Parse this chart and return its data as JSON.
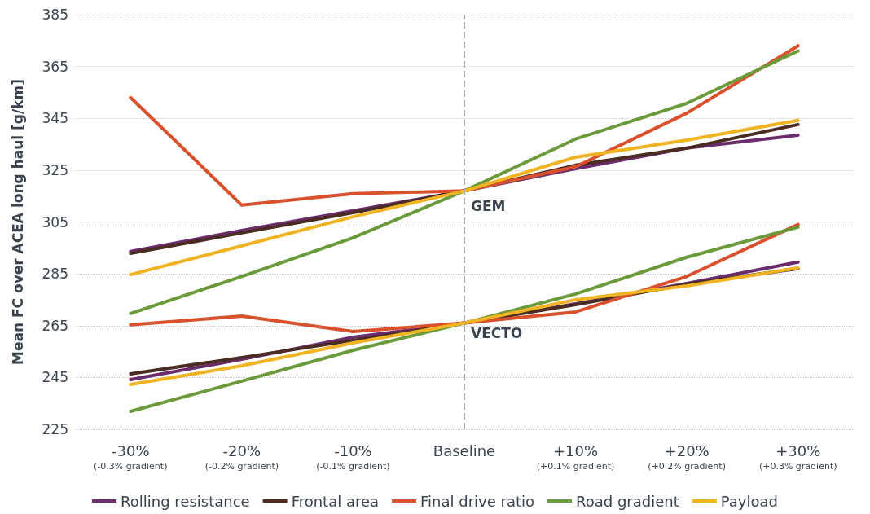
{
  "chart_data": {
    "type": "line",
    "ylabel": "Mean FC over ACEA long haul [g/km]",
    "categories": [
      "-30%\n(-0.3% gradient)",
      "-20%\n(-0.2% gradient)",
      "-10%\n(-0.1% gradient)",
      "Baseline",
      "+10%\n(+0.1% gradient)",
      "+20%\n(+0.2% gradient)",
      "+30%\n(+0.3% gradient)"
    ],
    "series": [
      {
        "name": "Rolling resistance",
        "color": "#6b2c6e",
        "values": [
          293.6,
          301.7,
          309.3,
          317,
          325.6,
          333.5,
          338.5
        ]
      },
      {
        "name": "Frontal area",
        "color": "#4a2c22",
        "values": [
          292.9,
          300.8,
          308.6,
          317,
          326.9,
          333.5,
          342.6
        ]
      },
      {
        "name": "Final drive ratio",
        "color": "#d9512c",
        "values": [
          353,
          311.5,
          315.9,
          317,
          326.3,
          347,
          373
        ]
      },
      {
        "name": "Road gradient",
        "color": "#6a9a3a",
        "values": [
          269.7,
          284,
          298.9,
          317,
          337,
          350.8,
          371
        ]
      },
      {
        "name": "Payload",
        "color": "#f0b323",
        "values": [
          284.7,
          295.8,
          307,
          317,
          330,
          336.6,
          344.2
        ]
      },
      {
        "color": "#6b2c6e",
        "values": [
          244.2,
          252,
          260.5,
          266,
          273.4,
          281.3,
          289.5
        ]
      },
      {
        "color": "#4a2c22",
        "values": [
          246.4,
          252.7,
          259.3,
          266,
          273.1,
          281,
          287
        ]
      },
      {
        "color": "#d9512c",
        "values": [
          265.3,
          268.7,
          262.7,
          266,
          270.3,
          284,
          304
        ]
      },
      {
        "color": "#6a9a3a",
        "values": [
          231.9,
          243.6,
          255.5,
          266,
          277.2,
          291.4,
          303
        ]
      },
      {
        "color": "#f0b323",
        "values": [
          242.3,
          249.5,
          258.3,
          266,
          275,
          280.3,
          287.3
        ]
      }
    ],
    "ylim": [
      225,
      385
    ],
    "yticks": [
      225,
      245,
      265,
      285,
      305,
      325,
      345,
      365,
      385
    ],
    "grid": "y",
    "legend": "bottom",
    "marker": "none",
    "line_style": "solid",
    "ref_lines": [
      {
        "axis": "x",
        "value": "Baseline",
        "color": "#aaaaaa",
        "line_style": "dashed"
      }
    ],
    "annotations": [
      {
        "text": "GEM",
        "x": "Baseline",
        "y": 311
      },
      {
        "text": "VECTO",
        "x": "Baseline",
        "y": 262
      }
    ]
  }
}
